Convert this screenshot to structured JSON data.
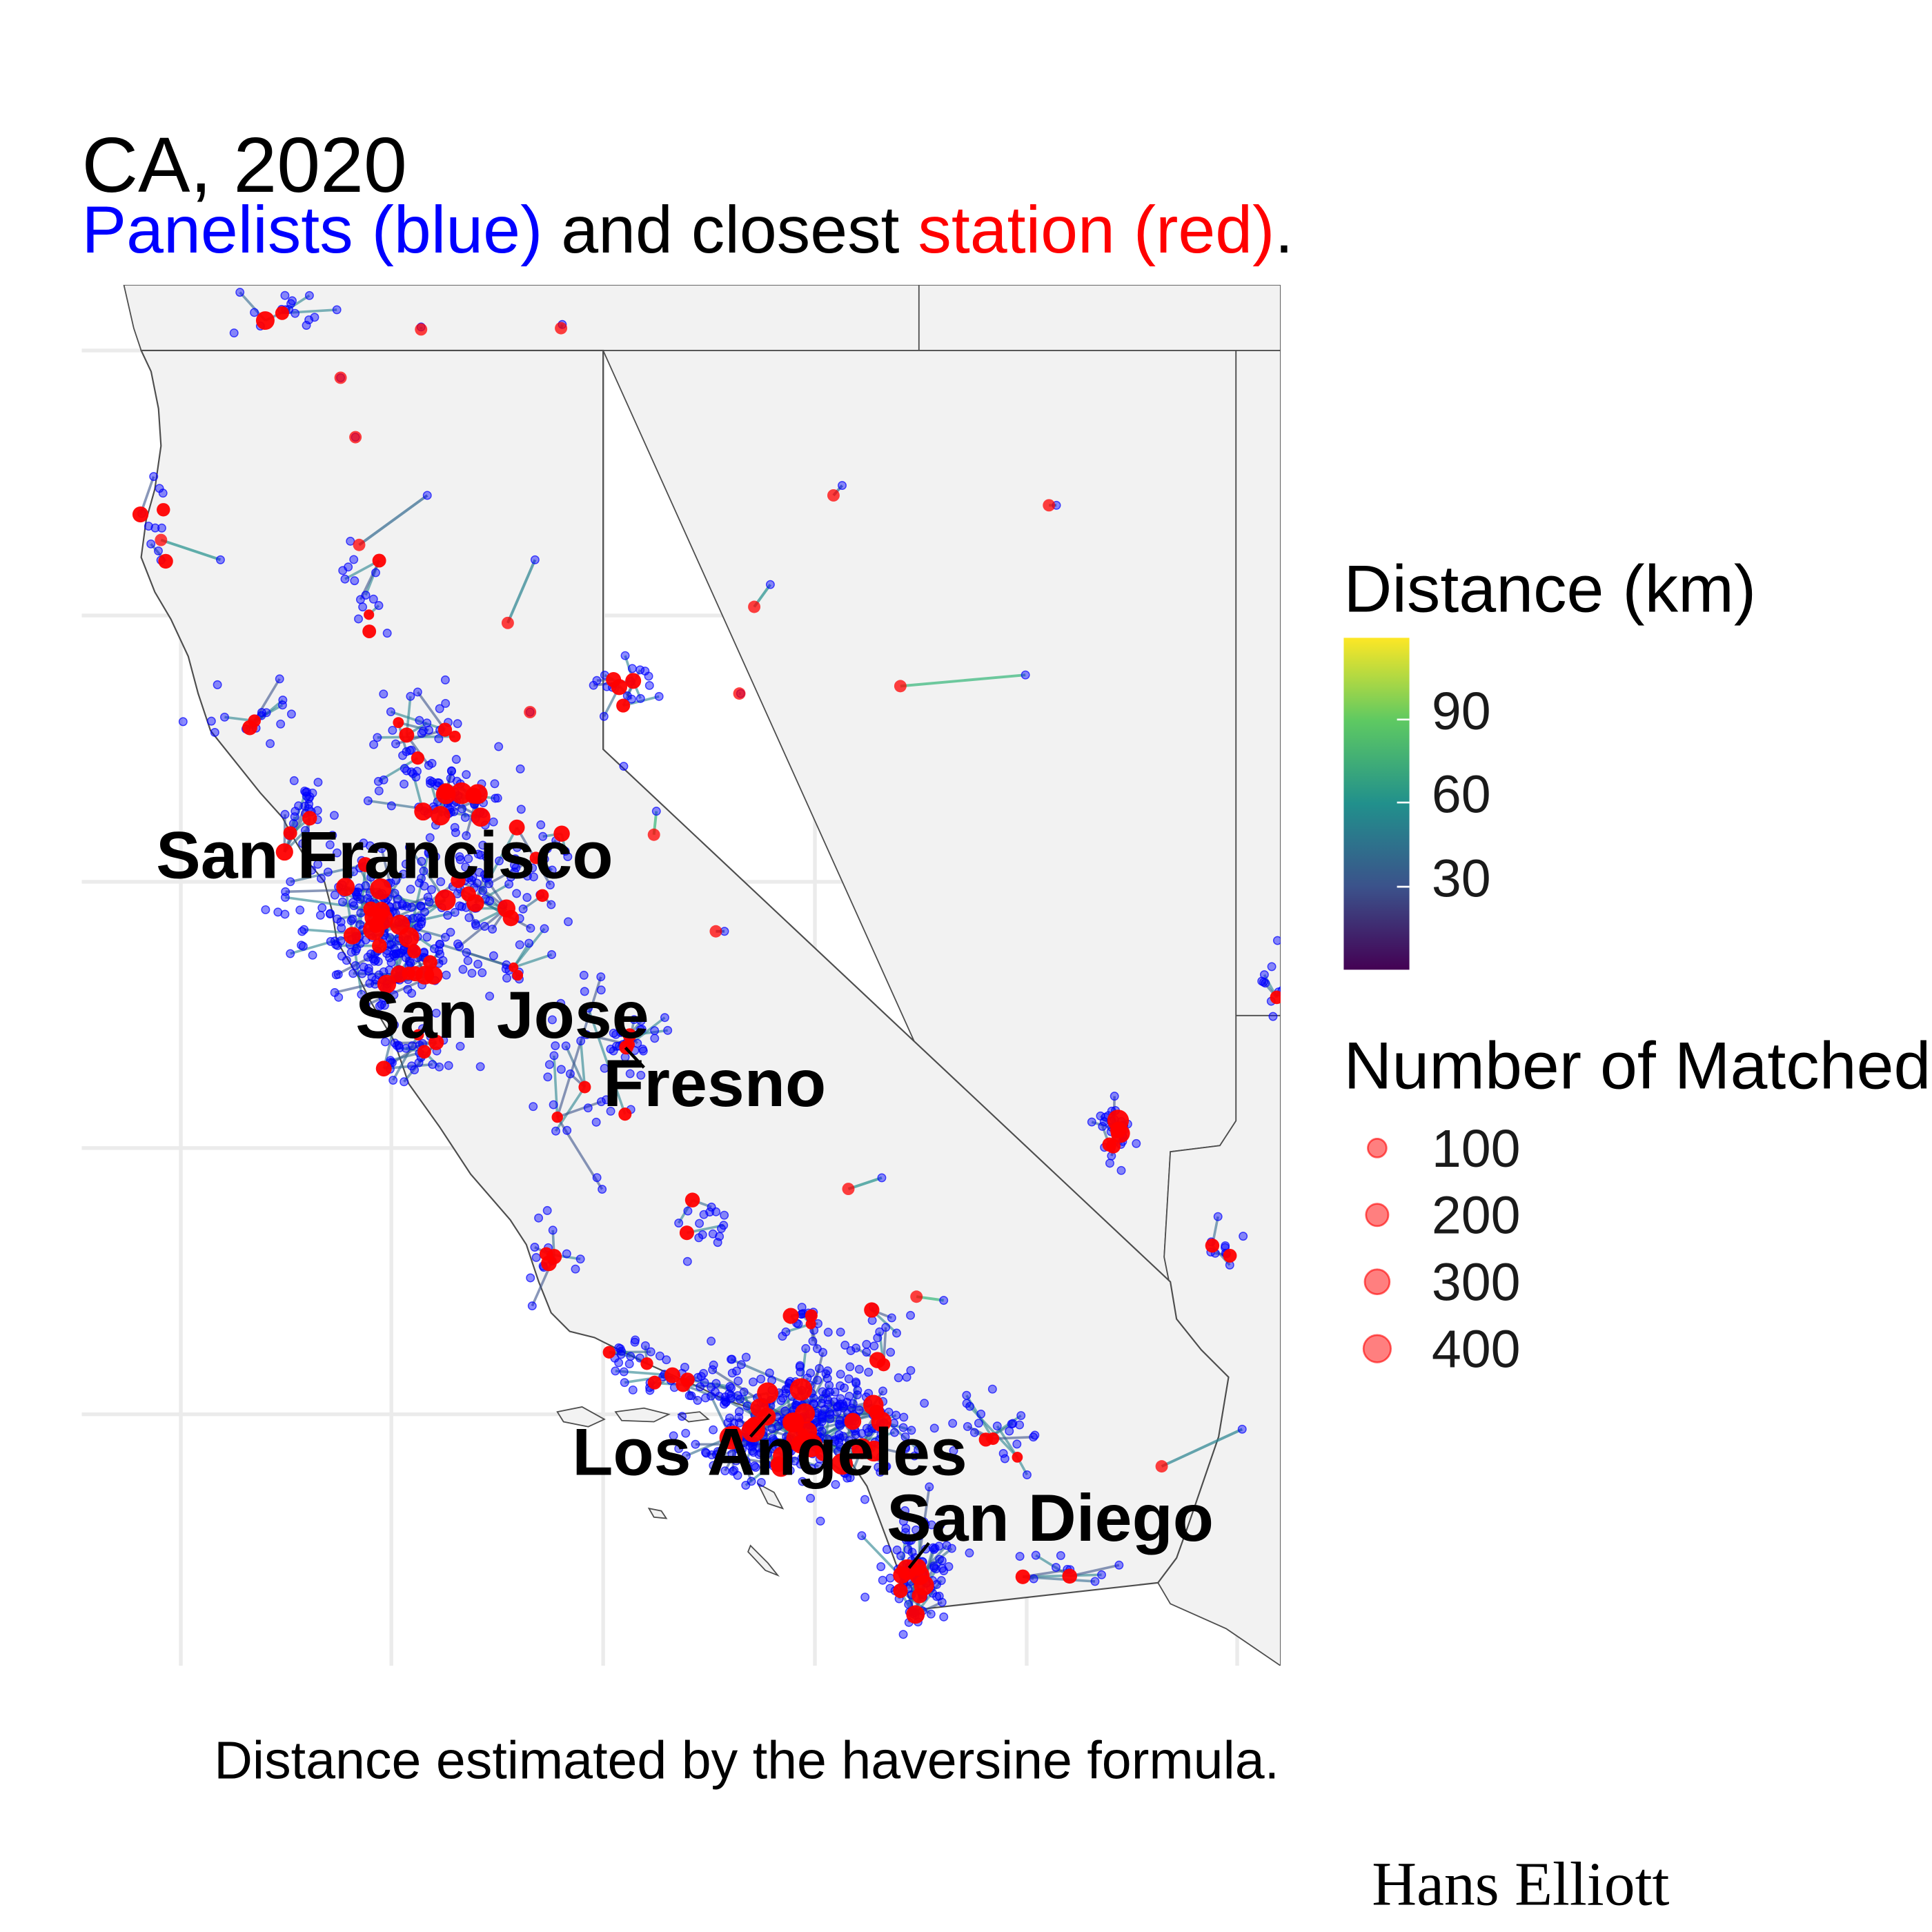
{
  "title": "CA, 2020",
  "subtitle": {
    "part1": "Panelists (blue)",
    "part2": " and closest ",
    "part3": "station (red)",
    "part4": "."
  },
  "colors": {
    "panelist": "#0000ff",
    "station": "#ff0000",
    "land": "#f2f2f2",
    "border": "#4d4d4d",
    "grid": "#ebebeb"
  },
  "cities": [
    {
      "name": "San Francisco"
    },
    {
      "name": "San Jose"
    },
    {
      "name": "Fresno"
    },
    {
      "name": "Los Angeles"
    },
    {
      "name": "San Diego"
    }
  ],
  "legend": {
    "distance": {
      "title": "Distance (km)",
      "ticks": [
        "30",
        "60",
        "90"
      ],
      "palette": "viridis"
    },
    "panelists": {
      "title": "Number of Matched Panelists",
      "entries": [
        "100",
        "200",
        "300",
        "400"
      ]
    }
  },
  "caption": "Distance estimated by the haversine formula.",
  "signature": "Hans Elliott"
}
